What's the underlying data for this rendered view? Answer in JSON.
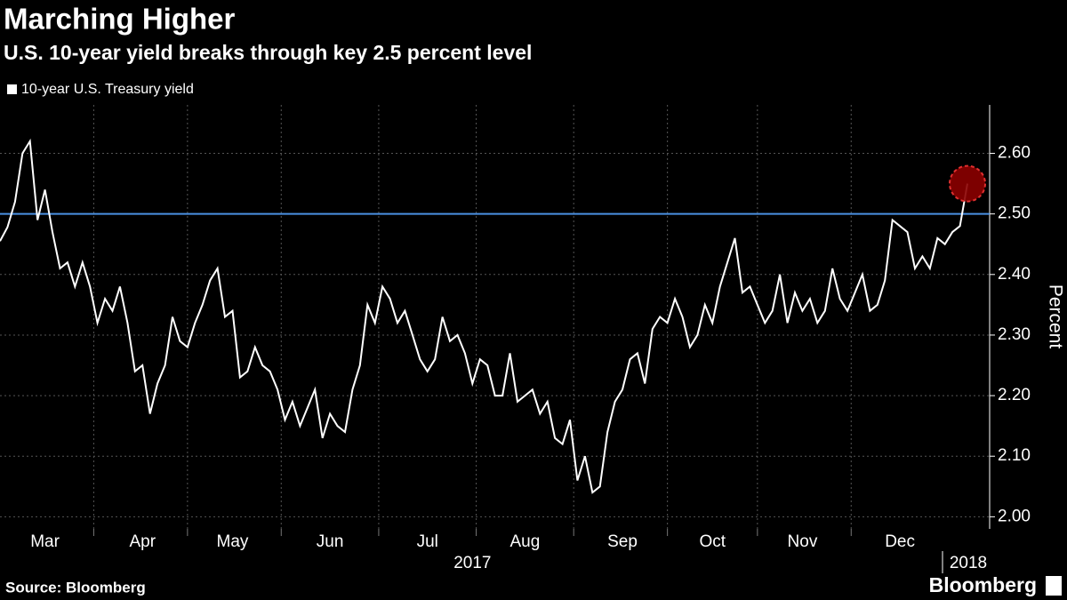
{
  "chart_data": {
    "type": "line",
    "title": "Marching Higher",
    "subtitle": "U.S. 10-year yield breaks through key 2.5 percent level",
    "y_axis_label": "Percent",
    "source": "Source: Bloomberg",
    "brand": "Bloomberg",
    "years": [
      "2017",
      "2018"
    ],
    "categories": [
      null,
      null,
      null,
      null,
      null,
      null,
      "Mar",
      null,
      null,
      null,
      null,
      null,
      null,
      null,
      null,
      null,
      null,
      null,
      null,
      "Apr",
      null,
      null,
      null,
      null,
      null,
      null,
      null,
      null,
      null,
      null,
      null,
      "May",
      null,
      null,
      null,
      null,
      null,
      null,
      null,
      null,
      null,
      null,
      null,
      null,
      "Jun",
      null,
      null,
      null,
      null,
      null,
      null,
      null,
      null,
      null,
      null,
      null,
      null,
      "Jul",
      null,
      null,
      null,
      null,
      null,
      null,
      null,
      null,
      null,
      null,
      null,
      null,
      "Aug",
      null,
      null,
      null,
      null,
      null,
      null,
      null,
      null,
      null,
      null,
      null,
      null,
      "Sep",
      null,
      null,
      null,
      null,
      null,
      null,
      null,
      null,
      null,
      null,
      null,
      "Oct",
      null,
      null,
      null,
      null,
      null,
      null,
      null,
      null,
      null,
      null,
      null,
      "Nov",
      null,
      null,
      null,
      null,
      null,
      null,
      null,
      null,
      null,
      null,
      null,
      null,
      "Dec",
      null,
      null,
      null,
      null,
      null,
      null,
      null,
      null,
      null
    ],
    "series": [
      {
        "name": "10-year U.S. Treasury yield",
        "color": "#ffffff",
        "values": [
          2.455,
          2.478,
          2.52,
          2.6,
          2.62,
          2.49,
          2.54,
          2.47,
          2.41,
          2.42,
          2.38,
          2.42,
          2.38,
          2.32,
          2.36,
          2.34,
          2.38,
          2.32,
          2.24,
          2.25,
          2.17,
          2.22,
          2.25,
          2.33,
          2.29,
          2.28,
          2.32,
          2.35,
          2.39,
          2.41,
          2.33,
          2.34,
          2.23,
          2.24,
          2.28,
          2.25,
          2.24,
          2.21,
          2.16,
          2.19,
          2.15,
          2.18,
          2.21,
          2.13,
          2.17,
          2.15,
          2.14,
          2.21,
          2.25,
          2.35,
          2.32,
          2.38,
          2.36,
          2.32,
          2.34,
          2.3,
          2.26,
          2.24,
          2.26,
          2.33,
          2.29,
          2.3,
          2.27,
          2.22,
          2.26,
          2.25,
          2.2,
          2.2,
          2.27,
          2.19,
          2.2,
          2.21,
          2.17,
          2.19,
          2.13,
          2.12,
          2.16,
          2.06,
          2.1,
          2.04,
          2.05,
          2.14,
          2.19,
          2.21,
          2.26,
          2.27,
          2.22,
          2.31,
          2.33,
          2.32,
          2.36,
          2.33,
          2.28,
          2.3,
          2.35,
          2.32,
          2.38,
          2.42,
          2.46,
          2.37,
          2.38,
          2.35,
          2.32,
          2.34,
          2.4,
          2.32,
          2.37,
          2.34,
          2.36,
          2.32,
          2.34,
          2.41,
          2.36,
          2.34,
          2.37,
          2.4,
          2.34,
          2.35,
          2.39,
          2.49,
          2.48,
          2.47,
          2.41,
          2.43,
          2.41,
          2.46,
          2.45,
          2.47,
          2.48,
          2.55
        ]
      }
    ],
    "reference_line": {
      "value": 2.5,
      "color": "#4a90e2"
    },
    "highlight_color": "#8b0000",
    "ylim": [
      1.98,
      2.68
    ],
    "yticks": [
      {
        "value": 2.0,
        "label": "2.00"
      },
      {
        "value": 2.1,
        "label": "2.10"
      },
      {
        "value": 2.2,
        "label": "2.20"
      },
      {
        "value": 2.3,
        "label": "2.30"
      },
      {
        "value": 2.4,
        "label": "2.40"
      },
      {
        "value": 2.5,
        "label": "2.50"
      },
      {
        "value": 2.6,
        "label": "2.60"
      }
    ],
    "grid": true
  }
}
